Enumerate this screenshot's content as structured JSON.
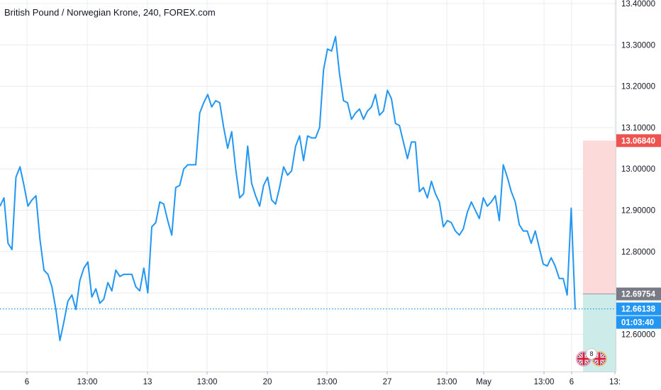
{
  "title": "British Pound / Norwegian Krone, 240, FOREX.com",
  "price_badges": {
    "target": "13.06840",
    "entry": "12.69754",
    "last": "12.66138",
    "countdown": "01:03:40"
  },
  "event_count": "8",
  "colors": {
    "line": "#2196f3",
    "target_badge": "#ef5350",
    "entry_badge": "#787b86",
    "last_badge": "#2196f3",
    "profit_zone": "#fcdada",
    "stop_zone": "#cdece9",
    "grid": "#e9ecf1"
  },
  "icons": [
    "gb-flag-icon",
    "no-flag-icon"
  ],
  "chart_data": {
    "type": "line",
    "title": "British Pound / Norwegian Krone, 240, FOREX.com",
    "ylim": [
      12.5,
      13.4
    ],
    "y_ticks": [
      "13.40000",
      "13.30000",
      "13.20000",
      "13.10000",
      "13.00000",
      "12.90000",
      "12.80000",
      "12.70000",
      "12.60000"
    ],
    "x_ticks": [
      "6",
      "13:00",
      "13",
      "13:00",
      "20",
      "13:00",
      "27",
      "13:00",
      "May",
      "13:00",
      "6",
      "13:"
    ],
    "grid": true,
    "series": [
      {
        "values": [
          12.91,
          12.93,
          12.82,
          12.805,
          12.98,
          13.005,
          12.96,
          12.91,
          12.925,
          12.935,
          12.83,
          12.755,
          12.745,
          12.715,
          12.66,
          12.585,
          12.63,
          12.68,
          12.695,
          12.66,
          12.73,
          12.76,
          12.775,
          12.69,
          12.71,
          12.675,
          12.685,
          12.725,
          12.705,
          12.755,
          12.74,
          12.745,
          12.745,
          12.745,
          12.715,
          12.705,
          12.76,
          12.7,
          12.86,
          12.87,
          12.92,
          12.915,
          12.875,
          12.84,
          12.955,
          12.96,
          13.0,
          13.01,
          13.01,
          13.01,
          13.135,
          13.16,
          13.18,
          13.15,
          13.165,
          13.16,
          13.1,
          13.05,
          13.09,
          13.0,
          12.93,
          12.94,
          13.055,
          12.965,
          12.935,
          12.91,
          12.96,
          12.98,
          12.925,
          12.915,
          12.955,
          13.005,
          12.985,
          12.995,
          13.055,
          13.08,
          13.02,
          13.08,
          13.075,
          13.075,
          13.1,
          13.24,
          13.29,
          13.285,
          13.32,
          13.23,
          13.165,
          13.16,
          13.12,
          13.135,
          13.145,
          13.12,
          13.14,
          13.15,
          13.18,
          13.13,
          13.14,
          13.19,
          13.17,
          13.11,
          13.105,
          13.065,
          13.025,
          13.065,
          13.065,
          12.945,
          12.955,
          12.93,
          12.97,
          12.94,
          12.92,
          12.86,
          12.875,
          12.87,
          12.85,
          12.84,
          12.855,
          12.895,
          12.92,
          12.9,
          12.88,
          12.93,
          12.91,
          12.92,
          12.935,
          12.875,
          13.01,
          12.98,
          12.945,
          12.92,
          12.865,
          12.85,
          12.85,
          12.82,
          12.85,
          12.81,
          12.77,
          12.765,
          12.785,
          12.765,
          12.735,
          12.735,
          12.695,
          12.905,
          12.66
        ]
      }
    ],
    "trade_zone": {
      "target": 13.0684,
      "entry": 12.69754,
      "last": 12.66138
    }
  }
}
